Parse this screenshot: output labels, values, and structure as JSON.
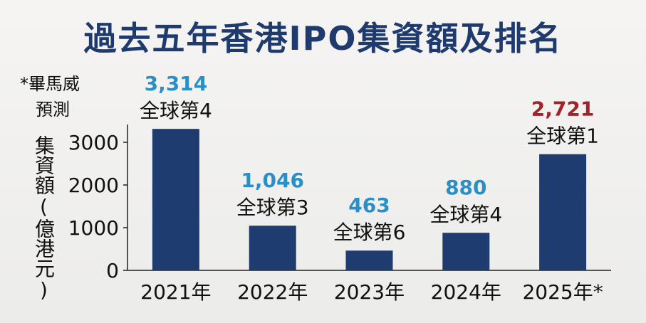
{
  "title": "過去五年香港IPO集資額及排名",
  "note_line1": "*畢馬威",
  "note_line2": "預測",
  "chart_data": {
    "type": "bar",
    "title": "過去五年香港IPO集資額及排名",
    "ylabel": "集資額(億港元)",
    "xlabel": "",
    "categories": [
      "2021年",
      "2022年",
      "2023年",
      "2024年",
      "2025年*"
    ],
    "values": [
      3314,
      1046,
      463,
      880,
      2721
    ],
    "value_labels": [
      "3,314",
      "1,046",
      "463",
      "880",
      "2,721"
    ],
    "rank_labels": [
      "全球第4",
      "全球第3",
      "全球第6",
      "全球第4",
      "全球第1"
    ],
    "value_label_colors": [
      "#2a8fc6",
      "#2a8fc6",
      "#2a8fc6",
      "#2a8fc6",
      "#a3232b"
    ],
    "bar_color": "#1e3c70",
    "ylim": [
      0,
      3500
    ],
    "yticks": [
      0,
      1000,
      2000,
      3000
    ],
    "grid": false
  }
}
